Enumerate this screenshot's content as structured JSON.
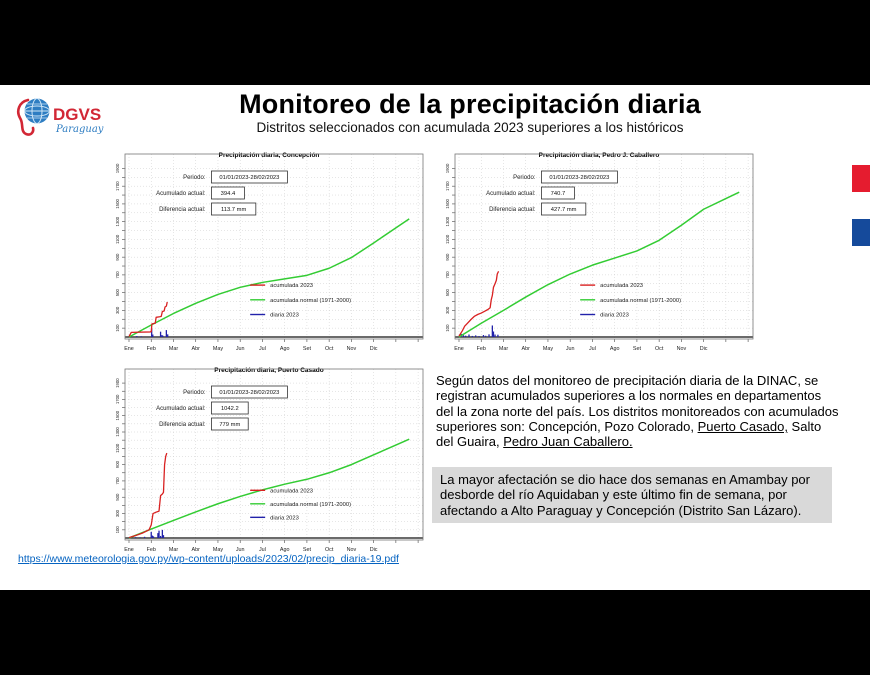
{
  "slide": {
    "title": "Monitoreo de la precipitación diaria",
    "subtitle": "Distritos seleccionados con acumulada 2023 superiores a los históricos"
  },
  "logo": {
    "name": "DGVS",
    "subname": "Paraguay",
    "red": "#d22735",
    "blue": "#2e7dc2"
  },
  "accent_squares": {
    "red": "#e51c2f",
    "blue": "#154a9b"
  },
  "colors": {
    "acumulada": "#d92121",
    "normal": "#33cc33",
    "diaria": "#2222aa",
    "grid": "#cccccc",
    "axis_box": "#777777",
    "zero_line": "#3a3a3a",
    "note_bg": "#d9d9d9",
    "link": "#0563c1"
  },
  "chart_common": {
    "type": "line",
    "months": [
      "Ene",
      "Feb",
      "Mar",
      "Abr",
      "May",
      "Jun",
      "Jul",
      "Ago",
      "Set",
      "Oct",
      "Nov",
      "Dic"
    ],
    "yticks_labeled": [
      100,
      300,
      500,
      700,
      900,
      1100,
      1300,
      1500,
      1700,
      1900
    ],
    "ytick_minor_step": 100,
    "ymax": 1950,
    "grid": true,
    "legend": [
      "acumulada 2023",
      "acumulada normal (1971-2000)",
      "diaria 2023"
    ],
    "legend_position": "inside-right-bottom",
    "info_labels": [
      "Periodo:",
      "Acumulado actual:",
      "Diferencia actual:"
    ]
  },
  "chart_data": [
    {
      "type": "line",
      "title": "Precipitación diaria, Concepción",
      "periodo": "01/01/2023-28/02/2023",
      "acumulado_actual": "394.4",
      "diferencia_actual": "113.7 mm",
      "normal_monthly": [
        0,
        135,
        265,
        380,
        480,
        560,
        615,
        655,
        695,
        775,
        895,
        1060,
        1230
      ],
      "acumulada_2023": [
        [
          0,
          5
        ],
        [
          0.1,
          52
        ],
        [
          0.95,
          57
        ],
        [
          1.0,
          60
        ],
        [
          1.03,
          148
        ],
        [
          1.18,
          155
        ],
        [
          1.22,
          222
        ],
        [
          1.38,
          228
        ],
        [
          1.45,
          232
        ],
        [
          1.5,
          287
        ],
        [
          1.58,
          293
        ],
        [
          1.62,
          338
        ],
        [
          1.68,
          348
        ],
        [
          1.72,
          394
        ]
      ],
      "diaria_2023": [
        [
          0.35,
          10
        ],
        [
          0.55,
          8
        ],
        [
          1.02,
          95
        ],
        [
          1.07,
          28
        ],
        [
          1.42,
          60
        ],
        [
          1.48,
          22
        ],
        [
          1.52,
          15
        ],
        [
          1.68,
          78
        ],
        [
          1.74,
          30
        ]
      ]
    },
    {
      "type": "line",
      "title": "Precipitación diaria, Pedro J. Caballero",
      "periodo": "01/01/2023-28/02/2023",
      "acumulado_actual": "740.7",
      "diferencia_actual": "427.7 mm",
      "normal_monthly": [
        0,
        155,
        300,
        450,
        590,
        710,
        810,
        890,
        970,
        1090,
        1260,
        1440,
        1560
      ],
      "acumulada_2023": [
        [
          0,
          10
        ],
        [
          0.15,
          70
        ],
        [
          0.25,
          120
        ],
        [
          0.4,
          160
        ],
        [
          0.55,
          200
        ],
        [
          0.7,
          235
        ],
        [
          0.85,
          255
        ],
        [
          1.0,
          270
        ],
        [
          1.15,
          290
        ],
        [
          1.3,
          310
        ],
        [
          1.4,
          330
        ],
        [
          1.45,
          420
        ],
        [
          1.5,
          470
        ],
        [
          1.55,
          560
        ],
        [
          1.62,
          600
        ],
        [
          1.68,
          640
        ],
        [
          1.72,
          710
        ],
        [
          1.78,
          740
        ]
      ],
      "diaria_2023": [
        [
          0.1,
          35
        ],
        [
          0.2,
          20
        ],
        [
          0.3,
          15
        ],
        [
          0.45,
          28
        ],
        [
          0.6,
          12
        ],
        [
          0.75,
          18
        ],
        [
          0.9,
          10
        ],
        [
          1.1,
          22
        ],
        [
          1.2,
          14
        ],
        [
          1.35,
          30
        ],
        [
          1.5,
          130
        ],
        [
          1.55,
          62
        ],
        [
          1.62,
          28
        ],
        [
          1.75,
          26
        ]
      ]
    },
    {
      "type": "line",
      "title": "Precipitación diaria, Puerto Casado",
      "periodo": "01/01/2023-28/02/2023",
      "acumulado_actual": "1042.2",
      "diferencia_actual": "779 mm",
      "normal_monthly": [
        0,
        110,
        215,
        320,
        420,
        510,
        590,
        660,
        720,
        800,
        900,
        1020,
        1140
      ],
      "acumulada_2023": [
        [
          0,
          5
        ],
        [
          0.3,
          30
        ],
        [
          0.6,
          60
        ],
        [
          0.9,
          100
        ],
        [
          1.0,
          160
        ],
        [
          1.08,
          300
        ],
        [
          1.2,
          315
        ],
        [
          1.35,
          330
        ],
        [
          1.42,
          520
        ],
        [
          1.5,
          540
        ],
        [
          1.55,
          560
        ],
        [
          1.6,
          900
        ],
        [
          1.65,
          1000
        ],
        [
          1.7,
          1042
        ]
      ],
      "diaria_2023": [
        [
          0.1,
          12
        ],
        [
          0.3,
          10
        ],
        [
          0.5,
          8
        ],
        [
          0.7,
          15
        ],
        [
          1.0,
          75
        ],
        [
          1.05,
          30
        ],
        [
          1.1,
          20
        ],
        [
          1.3,
          60
        ],
        [
          1.35,
          90
        ],
        [
          1.42,
          25
        ],
        [
          1.5,
          100
        ],
        [
          1.55,
          35
        ]
      ]
    }
  ],
  "paragraph": {
    "segments": [
      {
        "text": "Según datos del monitoreo de precipitación diaria de la DINAC, se registran acumulados superiores a los normales en departamentos del la zona norte del país. Los distritos monitoreados con acumulados superiores son: Concepción, Pozo Colorado, ",
        "underline": false
      },
      {
        "text": "Puerto Casado,",
        "underline": true
      },
      {
        "text": " Salto del Guaira, ",
        "underline": false
      },
      {
        "text": "Pedro Juan Caballero.",
        "underline": true
      }
    ]
  },
  "note": {
    "text": "La mayor afectación se dio hace dos semanas en Amambay por desborde del río Aquidaban y este último fin de semana, por afectando a Alto Paraguay y Concepción (Distrito San Lázaro)."
  },
  "source_link": {
    "text": "https://www.meteorologia.gov.py/wp-content/uploads/2023/02/precip_diaria-19.pdf"
  }
}
